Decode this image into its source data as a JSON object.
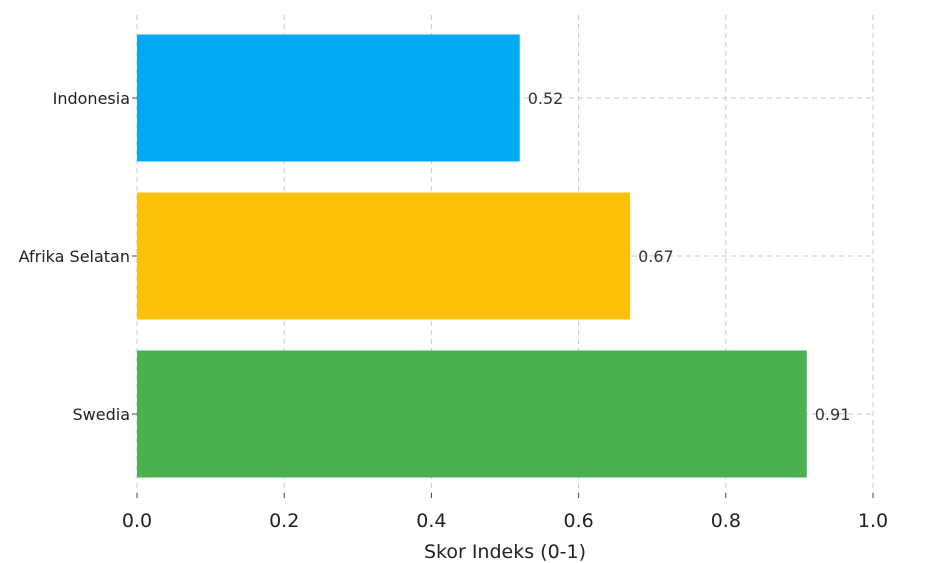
{
  "chart_data": {
    "type": "bar",
    "orientation": "horizontal",
    "categories": [
      "Indonesia",
      "Afrika Selatan",
      "Swedia"
    ],
    "values": [
      0.52,
      0.67,
      0.91
    ],
    "value_labels": [
      "0.52",
      "0.67",
      "0.91"
    ],
    "colors": [
      "#03a9f4",
      "#ffc107",
      "#4caf50"
    ],
    "title": "",
    "xlabel": "Skor Indeks (0-1)",
    "ylabel": "",
    "xlim": [
      0,
      1.0
    ],
    "x_ticks": [
      "0.0",
      "0.2",
      "0.4",
      "0.6",
      "0.8",
      "1.0"
    ],
    "grid": true,
    "legend": false
  }
}
